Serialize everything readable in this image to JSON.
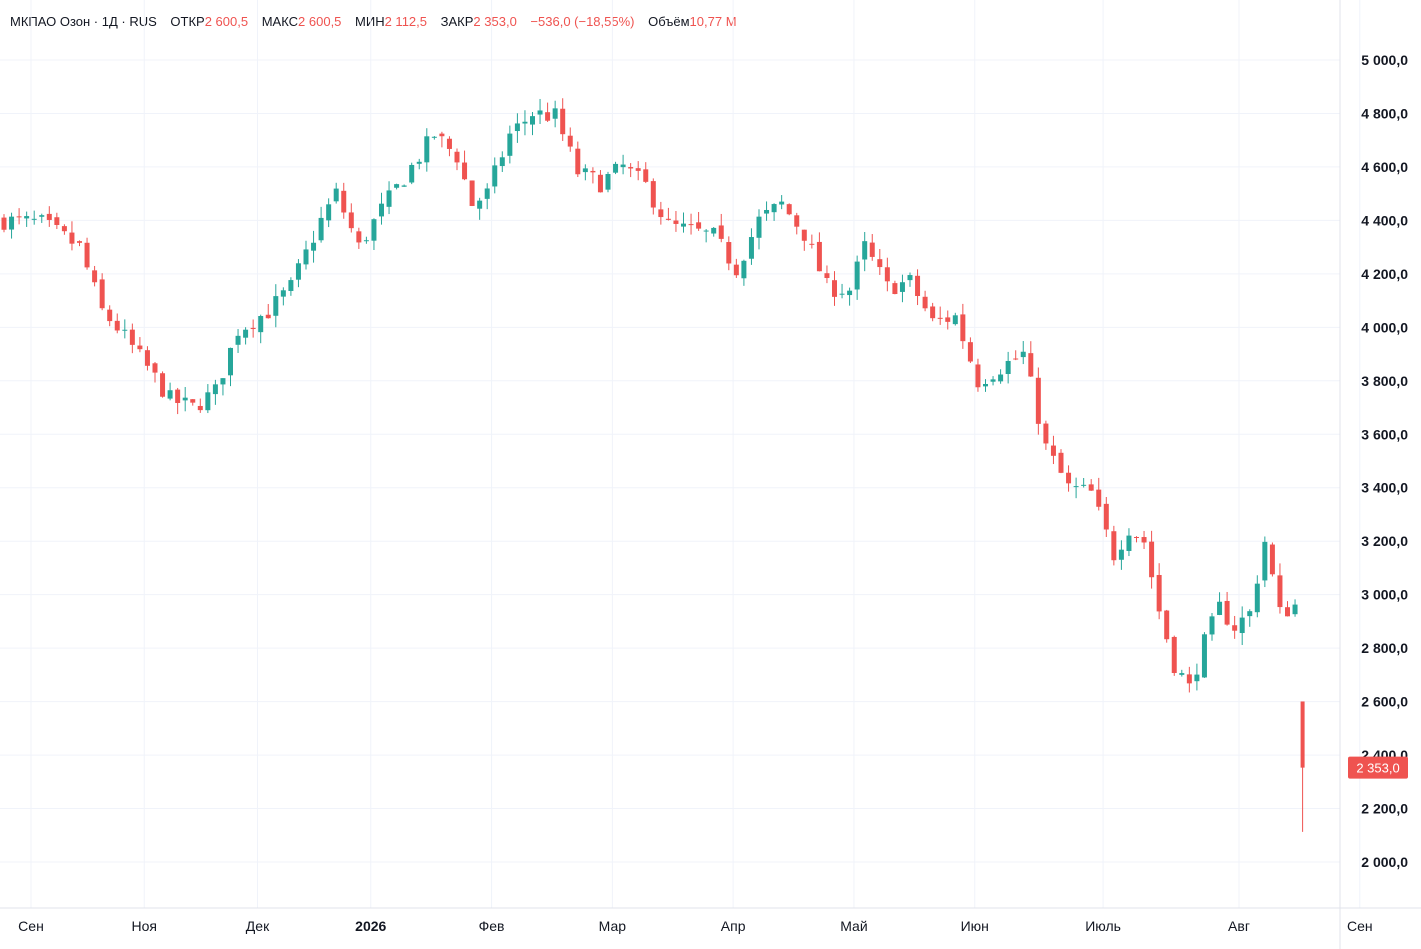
{
  "legend": {
    "symbol": "МКПАО Озон · 1Д · RUS",
    "open_label": "ОТКР",
    "open": "2 600,5",
    "high_label": "МАКС",
    "high": "2 600,5",
    "low_label": "МИН",
    "low": "2 112,5",
    "close_label": "ЗАКР",
    "close": "2 353,0",
    "change": "−536,0 (−18,55%)",
    "volume_label": "Объём",
    "volume": "10,77 M"
  },
  "colors": {
    "up": "#26a69a",
    "down": "#ef5350",
    "grid": "#f0f3fa",
    "text": "#131722"
  },
  "price_tag": "2 353,0",
  "chart_data": {
    "type": "candlestick",
    "title": "",
    "x_axis": {
      "tick_labels": [
        "Сен",
        "Ноя",
        "Дек",
        "2026",
        "Фев",
        "Мар",
        "Апр",
        "Май",
        "Июн",
        "Июль",
        "Авг",
        "Сен"
      ],
      "tick_positions": [
        0,
        15,
        30,
        45,
        61,
        77,
        93,
        109,
        125,
        142,
        160,
        176
      ]
    },
    "y_axis": {
      "range": [
        1900,
        5100
      ],
      "tick_values": [
        2000,
        2200,
        2400,
        2600,
        2800,
        3000,
        3200,
        3400,
        3600,
        3800,
        4000,
        4200,
        4400,
        4600,
        4800,
        5000
      ],
      "tick_labels": [
        "2 000,0",
        "2 200,0",
        "2 400,0",
        "2 600,0",
        "2 800,0",
        "3 000,0",
        "3 200,0",
        "3 400,0",
        "3 600,0",
        "3 800,0",
        "4 000,0",
        "4 200,0",
        "4 400,0",
        "4 600,0",
        "4 800,0",
        "5 000,0"
      ]
    },
    "grid": true,
    "anchors": [
      [
        0,
        4400
      ],
      [
        5,
        4390
      ],
      [
        10,
        4300
      ],
      [
        13,
        4060
      ],
      [
        15,
        4000
      ],
      [
        19,
        3850
      ],
      [
        22,
        3730
      ],
      [
        25,
        3700
      ],
      [
        28,
        3760
      ],
      [
        31,
        3990
      ],
      [
        35,
        4060
      ],
      [
        38,
        4150
      ],
      [
        42,
        4400
      ],
      [
        44,
        4500
      ],
      [
        47,
        4300
      ],
      [
        50,
        4440
      ],
      [
        54,
        4600
      ],
      [
        57,
        4720
      ],
      [
        60,
        4640
      ],
      [
        62,
        4460
      ],
      [
        64,
        4500
      ],
      [
        67,
        4720
      ],
      [
        70,
        4800
      ],
      [
        73,
        4790
      ],
      [
        76,
        4580
      ],
      [
        79,
        4540
      ],
      [
        82,
        4600
      ],
      [
        85,
        4530
      ],
      [
        88,
        4380
      ],
      [
        91,
        4360
      ],
      [
        94,
        4340
      ],
      [
        97,
        4220
      ],
      [
        100,
        4400
      ],
      [
        103,
        4460
      ],
      [
        106,
        4350
      ],
      [
        109,
        4150
      ],
      [
        112,
        4140
      ],
      [
        114,
        4300
      ],
      [
        117,
        4150
      ],
      [
        120,
        4170
      ],
      [
        123,
        4020
      ],
      [
        126,
        4040
      ],
      [
        129,
        3800
      ],
      [
        132,
        3850
      ],
      [
        135,
        3900
      ],
      [
        138,
        3550
      ],
      [
        141,
        3400
      ],
      [
        144,
        3380
      ],
      [
        147,
        3150
      ],
      [
        149,
        3250
      ],
      [
        151,
        3200
      ],
      [
        153,
        2940
      ],
      [
        155,
        2740
      ],
      [
        157,
        2650
      ],
      [
        159,
        2820
      ],
      [
        161,
        2950
      ],
      [
        163,
        2880
      ],
      [
        165,
        2930
      ],
      [
        167,
        3200
      ],
      [
        169,
        2930
      ],
      [
        171,
        2960
      ]
    ],
    "last_candle": {
      "index": 172,
      "open": 2600.5,
      "high": 2600.5,
      "low": 2112.5,
      "close": 2353.0
    }
  }
}
